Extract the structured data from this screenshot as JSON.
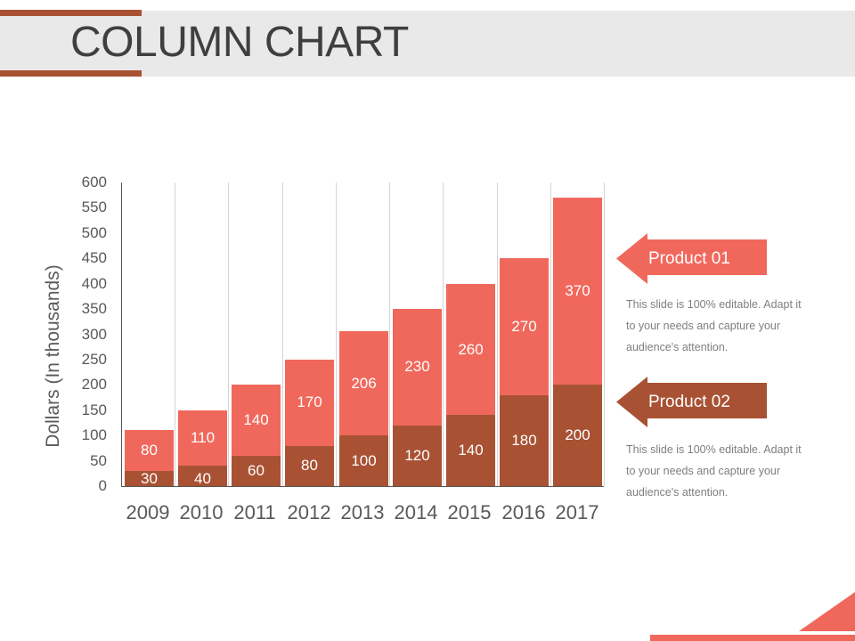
{
  "slide": {
    "title": "COLUMN CHART"
  },
  "colors": {
    "product_01": "#f0685c",
    "product_02": "#a85233",
    "header_band": "#e9e9e9",
    "title_text": "#3f3f3f",
    "axis_text": "#595959",
    "note_text": "#7f7f7f"
  },
  "legend": {
    "product_01": {
      "label": "Product 01",
      "note": "This slide is 100% editable. Adapt it to your needs and capture your audience's attention."
    },
    "product_02": {
      "label": "Product 02",
      "note": "This slide is 100% editable. Adapt it to your needs and capture your audience's attention."
    }
  },
  "axis": {
    "ylabel": "Dollars (In thousands)",
    "yticks": [
      "0",
      "50",
      "100",
      "150",
      "200",
      "250",
      "300",
      "350",
      "400",
      "450",
      "500",
      "550",
      "600"
    ],
    "xticks": [
      "2009",
      "2010",
      "2011",
      "2012",
      "2013",
      "2014",
      "2015",
      "2016",
      "2017"
    ]
  },
  "chart_data": {
    "type": "bar",
    "stacked": true,
    "title": "COLUMN CHART",
    "xlabel": "",
    "ylabel": "Dollars (In thousands)",
    "ylim": [
      0,
      600
    ],
    "ytick_step": 50,
    "grid": "vertical",
    "legend_position": "right",
    "categories": [
      "2009",
      "2010",
      "2011",
      "2012",
      "2013",
      "2014",
      "2015",
      "2016",
      "2017"
    ],
    "series": [
      {
        "name": "Product 02",
        "color": "#a85233",
        "values": [
          30,
          40,
          60,
          80,
          100,
          120,
          140,
          180,
          200
        ]
      },
      {
        "name": "Product 01",
        "color": "#f0685c",
        "values": [
          80,
          110,
          140,
          170,
          206,
          230,
          260,
          270,
          370
        ]
      }
    ]
  }
}
